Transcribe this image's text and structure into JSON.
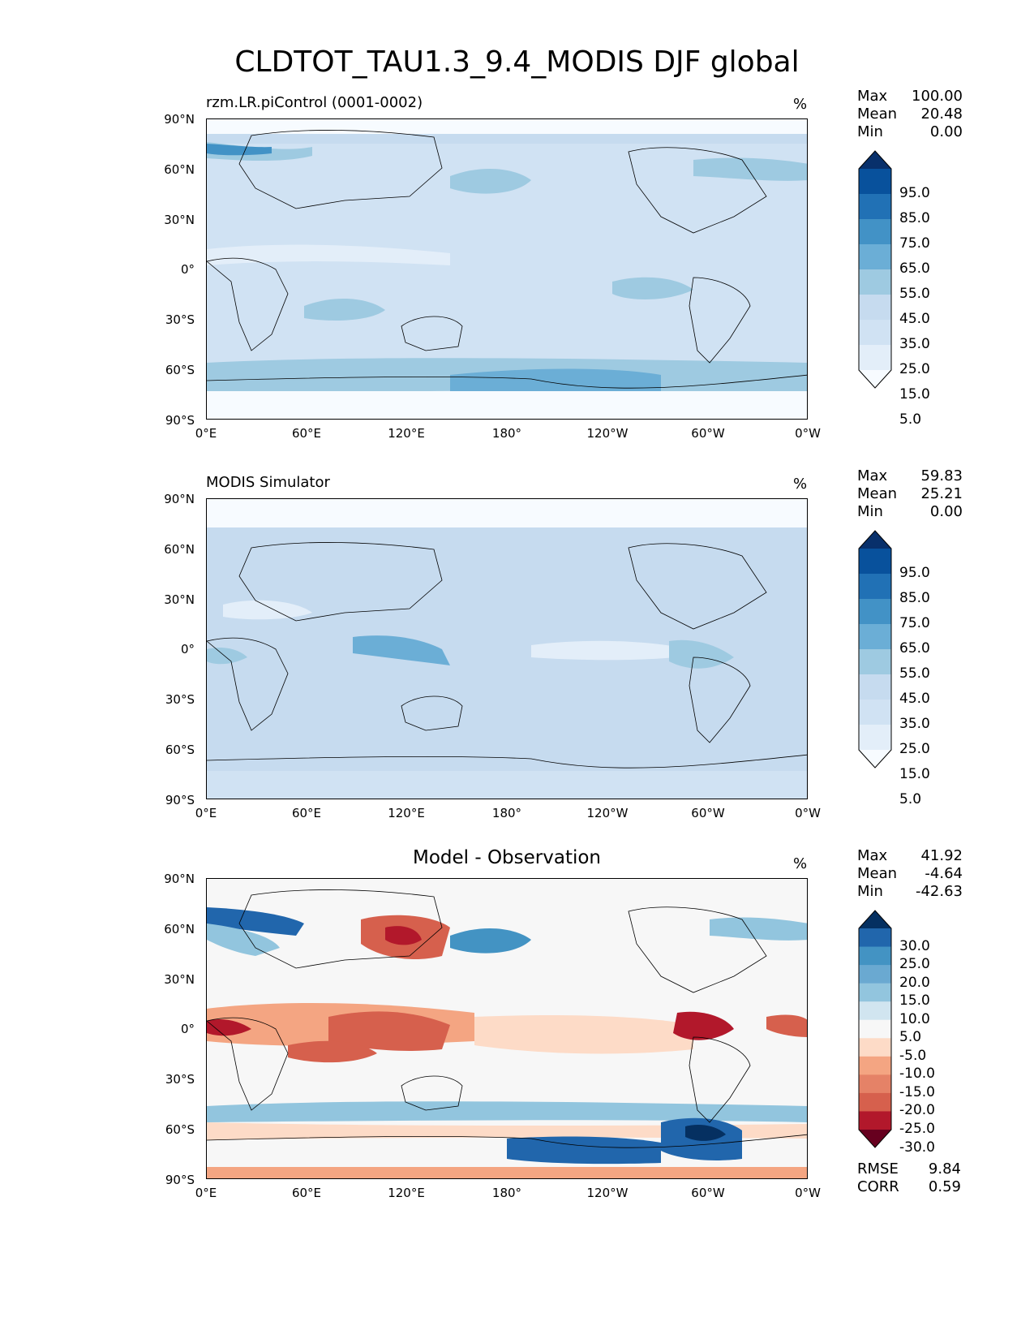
{
  "figure_title": "CLDTOT_TAU1.3_9.4_MODIS DJF global",
  "panels": [
    {
      "title": "rzm.LR.piControl (0001-0002)",
      "units": "%",
      "stats": {
        "max_label": "Max",
        "max": "100.00",
        "mean_label": "Mean",
        "mean": "20.48",
        "min_label": "Min",
        "min": "0.00"
      },
      "colorbar_ticks": [
        "95.0",
        "85.0",
        "75.0",
        "65.0",
        "55.0",
        "45.0",
        "35.0",
        "25.0",
        "15.0",
        "5.0"
      ],
      "colors": [
        "#f7fbff",
        "#e3eef9",
        "#d0e2f3",
        "#c6dbef",
        "#9ecae1",
        "#6baed6",
        "#4292c6",
        "#2171b5",
        "#08519c",
        "#08306b"
      ]
    },
    {
      "title": "MODIS Simulator",
      "units": "%",
      "stats": {
        "max_label": "Max",
        "max": "59.83",
        "mean_label": "Mean",
        "mean": "25.21",
        "min_label": "Min",
        "min": "0.00"
      },
      "colorbar_ticks": [
        "95.0",
        "85.0",
        "75.0",
        "65.0",
        "55.0",
        "45.0",
        "35.0",
        "25.0",
        "15.0",
        "5.0"
      ],
      "colors": [
        "#f7fbff",
        "#e3eef9",
        "#d0e2f3",
        "#c6dbef",
        "#9ecae1",
        "#6baed6",
        "#4292c6",
        "#2171b5",
        "#08519c",
        "#08306b"
      ]
    },
    {
      "title": "Model - Observation",
      "units": "%",
      "stats": {
        "max_label": "Max",
        "max": "41.92",
        "mean_label": "Mean",
        "mean": "-4.64",
        "min_label": "Min",
        "min": "-42.63"
      },
      "colorbar_ticks": [
        "30.0",
        "25.0",
        "20.0",
        "15.0",
        "10.0",
        "5.0",
        "-5.0",
        "-10.0",
        "-15.0",
        "-20.0",
        "-25.0",
        "-30.0"
      ],
      "colors": [
        "#67001f",
        "#b2182b",
        "#d6604d",
        "#e58267",
        "#f4a582",
        "#fddbc7",
        "#f7f7f7",
        "#d1e5f0",
        "#92c5de",
        "#6aa9d1",
        "#4393c3",
        "#2166ac",
        "#053061"
      ],
      "error_stats": {
        "rmse_label": "RMSE",
        "rmse": "9.84",
        "corr_label": "CORR",
        "corr": "0.59"
      }
    }
  ],
  "axes": {
    "lat_ticks": [
      "90°N",
      "60°N",
      "30°N",
      "0°",
      "30°S",
      "60°S",
      "90°S"
    ],
    "lon_ticks": [
      "0°E",
      "60°E",
      "120°E",
      "180°",
      "120°W",
      "60°W",
      "0°W"
    ]
  },
  "chart_data": [
    {
      "type": "heatmap",
      "title": "rzm.LR.piControl (0001-0002)",
      "units": "%",
      "xlim": [
        0,
        360
      ],
      "ylim": [
        -90,
        90
      ],
      "zlim": [
        0,
        100
      ],
      "levels": [
        5,
        15,
        25,
        35,
        45,
        55,
        65,
        75,
        85,
        95
      ]
    },
    {
      "type": "heatmap",
      "title": "MODIS Simulator",
      "units": "%",
      "xlim": [
        0,
        360
      ],
      "ylim": [
        -90,
        90
      ],
      "zlim": [
        0,
        59.83
      ],
      "levels": [
        5,
        15,
        25,
        35,
        45,
        55,
        65,
        75,
        85,
        95
      ]
    },
    {
      "type": "heatmap",
      "title": "Model - Observation",
      "units": "%",
      "xlim": [
        0,
        360
      ],
      "ylim": [
        -90,
        90
      ],
      "zlim": [
        -42.63,
        41.92
      ],
      "levels": [
        -30,
        -25,
        -20,
        -15,
        -10,
        -5,
        5,
        10,
        15,
        20,
        25,
        30
      ]
    }
  ]
}
